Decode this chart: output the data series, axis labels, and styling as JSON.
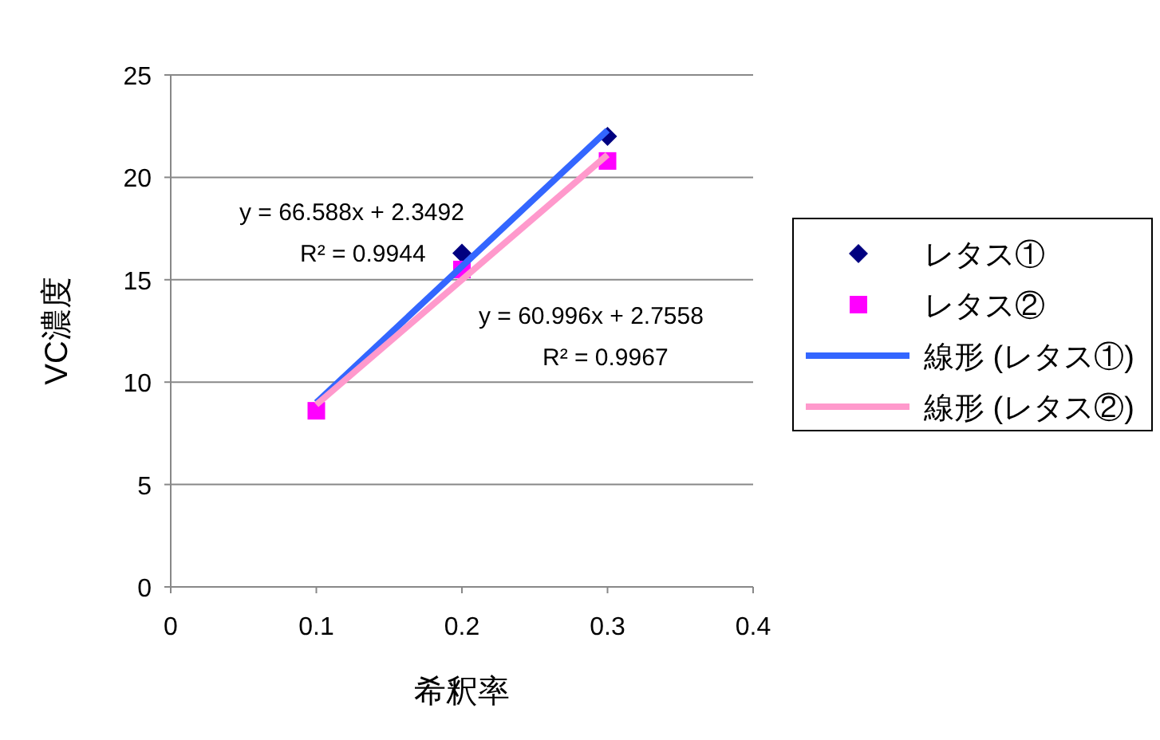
{
  "chart_data": {
    "type": "scatter",
    "xlabel": "希釈率",
    "ylabel": "VC濃度",
    "xlim": [
      0,
      0.4
    ],
    "xticks": [
      0,
      0.1,
      0.2,
      0.3,
      0.4
    ],
    "ylim": [
      0,
      25
    ],
    "yticks": [
      0,
      5,
      10,
      15,
      20,
      25
    ],
    "grid": "y",
    "legend": "right",
    "series": [
      {
        "name": "レタス①",
        "type": "scatter",
        "marker": "diamond",
        "color": "#000080",
        "x": [
          0.2,
          0.3
        ],
        "values": [
          16.3,
          22.0
        ]
      },
      {
        "name": "レタス②",
        "type": "scatter",
        "marker": "square",
        "color": "#ff00ff",
        "x": [
          0.1,
          0.2,
          0.3
        ],
        "values": [
          8.6,
          15.5,
          20.8
        ]
      },
      {
        "name": "線形 (レタス①)",
        "type": "line",
        "marker": "none",
        "color": "#3366ff",
        "x": [
          0.1,
          0.3
        ],
        "values": [
          9.0,
          22.3
        ]
      },
      {
        "name": "線形 (レタス②)",
        "type": "line",
        "marker": "none",
        "color": "#ff99cc",
        "x": [
          0.1,
          0.3
        ],
        "values": [
          8.9,
          21.1
        ]
      }
    ],
    "annotations": [
      "y = 66.588x + 2.3492",
      "R² = 0.9944",
      "y = 60.996x + 2.7558",
      "R² = 0.9967"
    ]
  }
}
